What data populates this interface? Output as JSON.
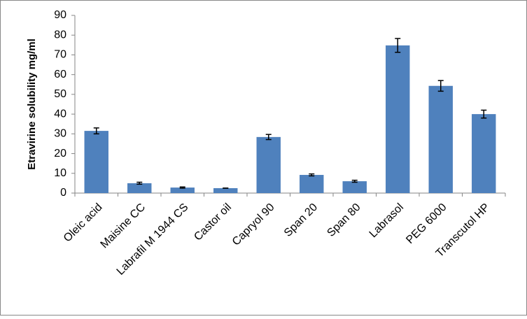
{
  "chart_data": {
    "type": "bar",
    "y_axis_label": "Etravirine solubility mg/ml",
    "categories": [
      "Oleic acid",
      "Maisine CC",
      "Labrafil  M 1944 CS",
      "Castor oil",
      "Capryol 90",
      "Span 20",
      "Span 80",
      "Labrasol",
      "PEG 6000",
      "Transcutol HP"
    ],
    "values": [
      31.5,
      5,
      2.8,
      2.5,
      28.4,
      9.2,
      6,
      74.8,
      54.3,
      40
    ],
    "errors": [
      1.5,
      0.5,
      0.3,
      0,
      1.3,
      0.5,
      0.5,
      3.5,
      2.7,
      2
    ],
    "color": "#4f81bd",
    "ylim": [
      0,
      90
    ],
    "yticks": [
      0,
      10,
      20,
      30,
      40,
      50,
      60,
      70,
      80,
      90
    ],
    "grid": false
  }
}
